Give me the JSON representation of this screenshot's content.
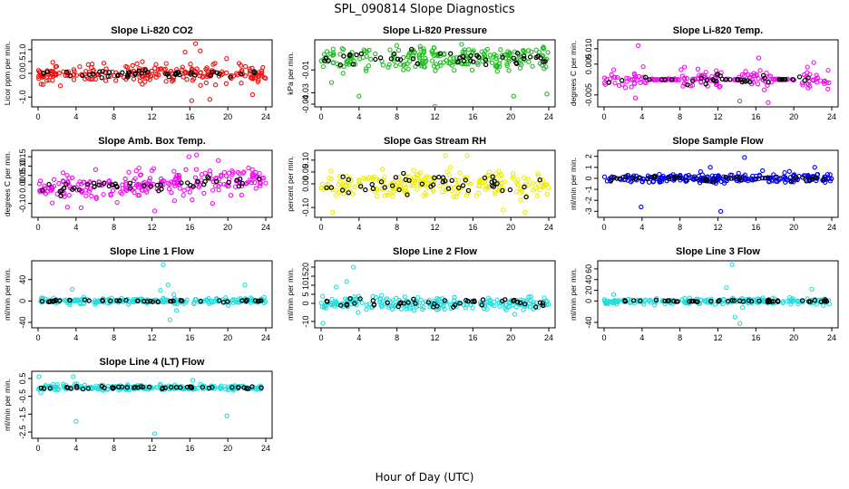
{
  "title": "SPL_090814  Slope Diagnostics",
  "xlabel": "Hour of Day (UTC)",
  "chart_data": [
    {
      "type": "scatter",
      "title": "Slope Li-820 CO2",
      "ylabel": "Licor ppm per min.",
      "xlim": [
        0,
        24
      ],
      "ylim": [
        -1.3,
        1.3
      ],
      "xticks": [
        "0",
        "4",
        "8",
        "12",
        "16",
        "20",
        "24"
      ],
      "yticks": [
        "-1.0",
        "0.0",
        "0.5",
        "1.0"
      ],
      "ytick_values": [
        -1.0,
        0.0,
        0.5,
        1.0
      ],
      "colors": {
        "bulk": "#ee1111",
        "sample": "#000000"
      },
      "bulk_spread": 0.3,
      "sample_spread": 0.12,
      "n_bulk": 230,
      "n_sample": 45,
      "outliers": [
        [
          16.6,
          1.25
        ],
        [
          17.1,
          0.95
        ],
        [
          16.2,
          -1.15
        ],
        [
          18.1,
          -1.1
        ],
        [
          15.5,
          0.9
        ],
        [
          22.6,
          -0.9
        ]
      ]
    },
    {
      "type": "scatter",
      "title": "Slope Li-820 Pressure",
      "ylabel": "kPa per min.",
      "xlim": [
        0,
        24
      ],
      "ylim": [
        -0.04,
        0.014
      ],
      "xticks": [
        "0",
        "4",
        "8",
        "12",
        "16",
        "20",
        "24"
      ],
      "yticks": [
        "-0.04",
        "-0.03",
        "-0.01"
      ],
      "ytick_values": [
        -0.04,
        -0.03,
        -0.01
      ],
      "colors": {
        "bulk": "#22bb22",
        "sample": "#000000"
      },
      "bulk_spread": 0.007,
      "sample_spread": 0.004,
      "n_bulk": 230,
      "n_sample": 45,
      "outliers": [
        [
          4.0,
          -0.033
        ],
        [
          12.0,
          -0.042
        ],
        [
          23.8,
          -0.031
        ],
        [
          20.3,
          -0.033
        ],
        [
          1.1,
          -0.021
        ]
      ]
    },
    {
      "type": "scatter",
      "title": "Slope Li-820 Temp.",
      "ylabel": "degrees C per min.",
      "xlim": [
        0,
        24
      ],
      "ylim": [
        -0.008,
        0.012
      ],
      "xticks": [
        "0",
        "4",
        "8",
        "12",
        "16",
        "20",
        "24"
      ],
      "yticks": [
        "-0.005",
        "0.005",
        "0.010"
      ],
      "ytick_values": [
        -0.005,
        0.005,
        0.01
      ],
      "colors": {
        "bulk": "#ee11ee",
        "sample": "#000000"
      },
      "bulk_spread": 0.0025,
      "sample_spread": 0.0015,
      "n_bulk": 200,
      "n_sample": 40,
      "gaps": [
        [
          4.5,
          8.0
        ],
        [
          12.6,
          14.2
        ],
        [
          17.8,
          20.3
        ]
      ],
      "outliers": [
        [
          3.6,
          0.011
        ],
        [
          3.3,
          -0.006
        ],
        [
          16.3,
          0.007
        ],
        [
          22.1,
          0.0055
        ],
        [
          14.3,
          -0.007
        ],
        [
          17.3,
          -0.0075
        ]
      ]
    },
    {
      "type": "scatter",
      "title": "Slope Amb. Box Temp.",
      "ylabel": "degrees C per min.",
      "xlim": [
        0,
        24
      ],
      "ylim": [
        -0.16,
        0.17
      ],
      "xticks": [
        "0",
        "4",
        "8",
        "12",
        "16",
        "20",
        "24"
      ],
      "yticks": [
        "-0.10",
        "0.00",
        "0.05",
        "0.10",
        "0.15"
      ],
      "ytick_values": [
        -0.1,
        0.0,
        0.05,
        0.1,
        0.15
      ],
      "colors": {
        "bulk": "#ee11ee",
        "sample": "#000000"
      },
      "bulk_spread": 0.05,
      "trend": 0.0025,
      "sample_spread": 0.02,
      "n_bulk": 240,
      "n_sample": 45,
      "outliers": [
        [
          12.3,
          -0.14
        ],
        [
          15.9,
          0.15
        ],
        [
          16.7,
          0.16
        ],
        [
          19.0,
          0.13
        ],
        [
          3.1,
          -0.12
        ],
        [
          18.4,
          -0.1
        ]
      ]
    },
    {
      "type": "scatter",
      "title": "Slope Gas Stream RH",
      "ylabel": "percent per min.",
      "xlim": [
        0,
        24
      ],
      "ylim": [
        -0.13,
        0.13
      ],
      "xticks": [
        "0",
        "4",
        "8",
        "12",
        "16",
        "20",
        "24"
      ],
      "yticks": [
        "-0.10",
        "0.00",
        "0.05",
        "0.10"
      ],
      "ytick_values": [
        -0.1,
        0.0,
        0.05,
        0.1
      ],
      "colors": {
        "bulk": "#eeee00",
        "sample": "#000000"
      },
      "bulk_spread": 0.04,
      "sample_spread": 0.03,
      "n_bulk": 230,
      "n_sample": 45,
      "outliers": [
        [
          1.2,
          -0.12
        ],
        [
          13.1,
          0.12
        ],
        [
          15.4,
          0.12
        ],
        [
          21.5,
          -0.12
        ],
        [
          19.2,
          -0.11
        ]
      ]
    },
    {
      "type": "scatter",
      "title": "Slope Sample Flow",
      "ylabel": "ml/min per min.",
      "xlim": [
        0,
        24
      ],
      "ylim": [
        -3.3,
        2.3
      ],
      "xticks": [
        "0",
        "4",
        "8",
        "12",
        "16",
        "20",
        "24"
      ],
      "yticks": [
        "-3",
        "-2",
        "-1",
        "0",
        "1",
        "2"
      ],
      "ytick_values": [
        -3,
        -2,
        -1,
        0,
        1,
        2
      ],
      "colors": {
        "bulk": "#0000ee",
        "sample": "#000000"
      },
      "bulk_spread": 0.3,
      "sample_spread": 0.2,
      "n_bulk": 230,
      "n_sample": 45,
      "outliers": [
        [
          3.9,
          -2.6
        ],
        [
          12.3,
          -3.0
        ],
        [
          14.8,
          1.9
        ],
        [
          16.7,
          0.7
        ],
        [
          11.2,
          1.0
        ],
        [
          22.2,
          1.0
        ]
      ]
    },
    {
      "type": "scatter",
      "title": "Slope Line 1 Flow",
      "ylabel": "ml/min per min.",
      "xlim": [
        0,
        24
      ],
      "ylim": [
        -45,
        70
      ],
      "xticks": [
        "0",
        "4",
        "8",
        "12",
        "16",
        "20",
        "24"
      ],
      "yticks": [
        "-40",
        "0",
        "40"
      ],
      "ytick_values": [
        -40,
        0,
        40
      ],
      "colors": {
        "bulk": "#22dddd",
        "sample": "#000000"
      },
      "bulk_spread": 4,
      "sample_spread": 1.5,
      "n_bulk": 200,
      "n_sample": 45,
      "outliers": [
        [
          13.2,
          68
        ],
        [
          13.7,
          30
        ],
        [
          13.9,
          -35
        ],
        [
          14.3,
          12
        ],
        [
          12.9,
          20
        ],
        [
          3.6,
          22
        ],
        [
          21.8,
          30
        ],
        [
          14.6,
          -18
        ]
      ]
    },
    {
      "type": "scatter",
      "title": "Slope Line 2 Flow",
      "ylabel": "ml/min per min.",
      "xlim": [
        0,
        24
      ],
      "ylim": [
        -12,
        22
      ],
      "xticks": [
        "0",
        "4",
        "8",
        "12",
        "16",
        "20",
        "24"
      ],
      "yticks": [
        "-10",
        "0",
        "5",
        "10",
        "15",
        "20"
      ],
      "ytick_values": [
        -10,
        0,
        5,
        10,
        15,
        20
      ],
      "colors": {
        "bulk": "#22dddd",
        "sample": "#000000"
      },
      "bulk_spread": 2.5,
      "sample_spread": 1.5,
      "n_bulk": 220,
      "n_sample": 45,
      "outliers": [
        [
          3.4,
          20
        ],
        [
          0.2,
          -11
        ],
        [
          2.7,
          12
        ],
        [
          1.6,
          9
        ],
        [
          20.4,
          -6
        ],
        [
          3.9,
          -5
        ]
      ]
    },
    {
      "type": "scatter",
      "title": "Slope Line 3 Flow",
      "ylabel": "ml/min per min.",
      "xlim": [
        0,
        24
      ],
      "ylim": [
        -45,
        70
      ],
      "xticks": [
        "0",
        "4",
        "8",
        "12",
        "16",
        "20",
        "24"
      ],
      "yticks": [
        "-40",
        "0",
        "20",
        "40",
        "60"
      ],
      "ytick_values": [
        -40,
        0,
        20,
        40,
        60
      ],
      "colors": {
        "bulk": "#22dddd",
        "sample": "#000000"
      },
      "bulk_spread": 4,
      "sample_spread": 1.5,
      "n_bulk": 200,
      "n_sample": 45,
      "outliers": [
        [
          13.5,
          68
        ],
        [
          12.9,
          25
        ],
        [
          13.8,
          -30
        ],
        [
          14.3,
          -42
        ],
        [
          21.9,
          22
        ],
        [
          14.6,
          -12
        ],
        [
          1.0,
          12
        ]
      ]
    },
    {
      "type": "scatter",
      "title": "Slope Line 4 (LT) Flow",
      "ylabel": "ml/min per min.",
      "xlim": [
        0,
        24
      ],
      "ylim": [
        -2.7,
        0.75
      ],
      "xticks": [
        "0",
        "4",
        "8",
        "12",
        "16",
        "20",
        "24"
      ],
      "yticks": [
        "-2.5",
        "-1.5",
        "-0.5",
        "0.5"
      ],
      "ytick_values": [
        -2.5,
        -1.5,
        -0.5,
        0.5
      ],
      "colors": {
        "bulk": "#22dddd",
        "sample": "#000000"
      },
      "bulk_spread": 0.12,
      "sample_spread": 0.06,
      "n_bulk": 200,
      "n_sample": 45,
      "outliers": [
        [
          0.1,
          0.6
        ],
        [
          3.7,
          0.6
        ],
        [
          4.0,
          -1.9
        ],
        [
          12.3,
          -2.6
        ],
        [
          19.9,
          -1.6
        ],
        [
          16.3,
          0.4
        ],
        [
          0.3,
          -0.3
        ]
      ]
    }
  ]
}
